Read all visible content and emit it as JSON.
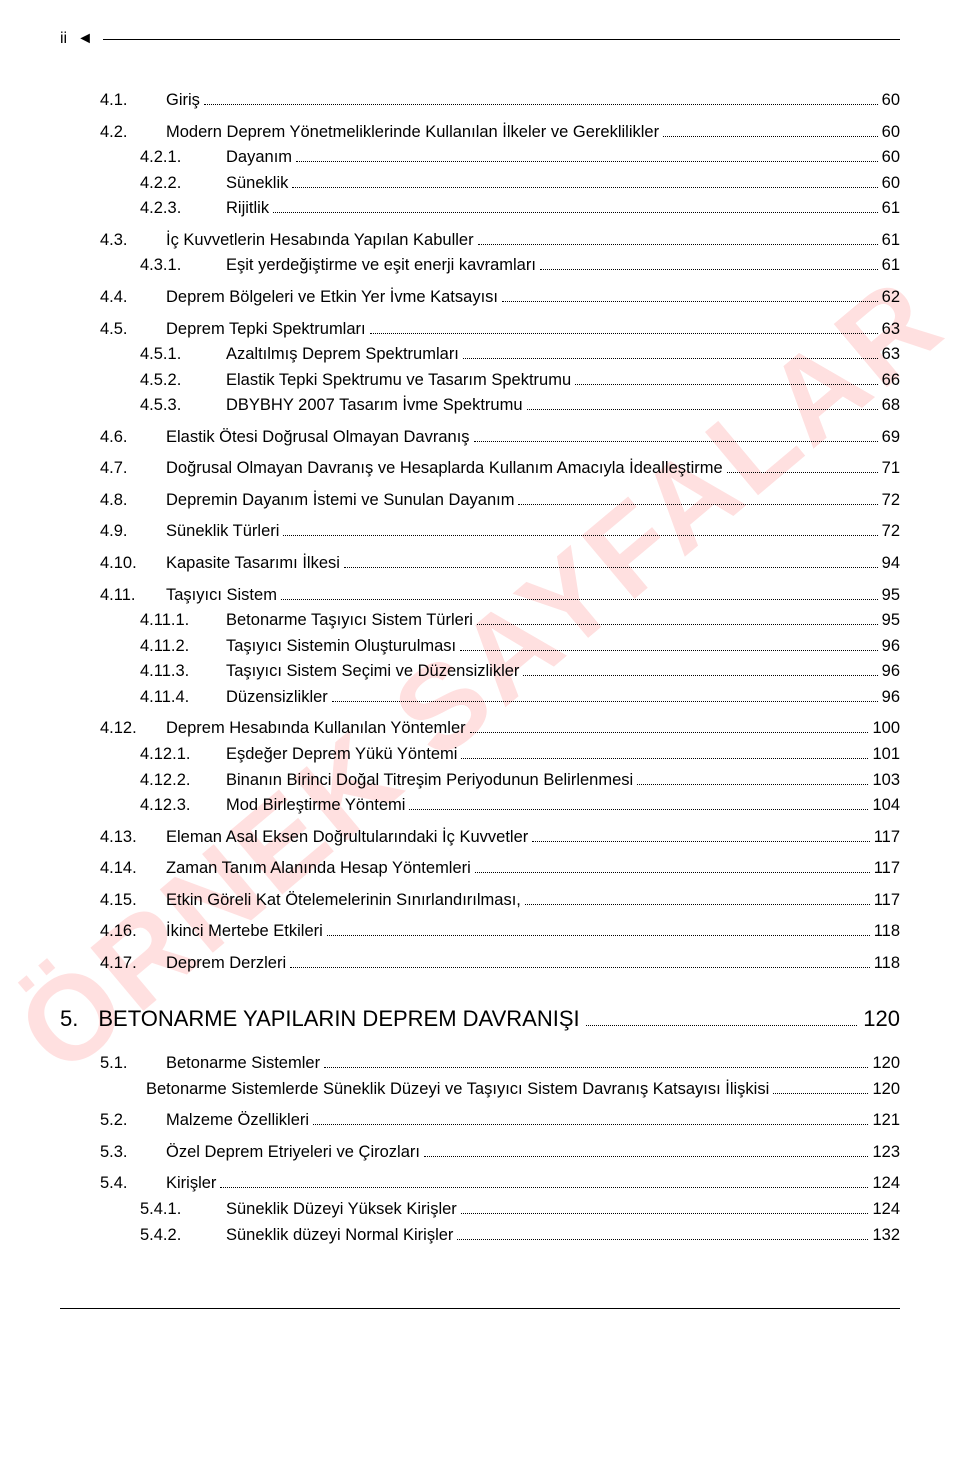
{
  "header": {
    "marker": "ii",
    "triangle": "◄"
  },
  "watermark": "ÖRNEK SAYFALAR",
  "toc": [
    {
      "num": "4.1.",
      "title": "Giriş",
      "page": "60",
      "indent": 1,
      "gap": true
    },
    {
      "num": "4.2.",
      "title": "Modern Deprem Yönetmeliklerinde Kullanılan İlkeler ve Gereklilikler",
      "page": "60",
      "indent": 1,
      "gap": true
    },
    {
      "num": "4.2.1.",
      "title": "Dayanım",
      "page": "60",
      "indent": 2
    },
    {
      "num": "4.2.2.",
      "title": "Süneklik",
      "page": "60",
      "indent": 2
    },
    {
      "num": "4.2.3.",
      "title": "Rijitlik",
      "page": "61",
      "indent": 2
    },
    {
      "num": "4.3.",
      "title": "İç Kuvvetlerin Hesabında Yapılan Kabuller",
      "page": "61",
      "indent": 1,
      "gap": true
    },
    {
      "num": "4.3.1.",
      "title": "Eşit yerdeğiştirme ve eşit enerji kavramları",
      "page": "61",
      "indent": 2
    },
    {
      "num": "4.4.",
      "title": "Deprem Bölgeleri ve Etkin Yer İvme Katsayısı",
      "page": "62",
      "indent": 1,
      "gap": true
    },
    {
      "num": "4.5.",
      "title": "Deprem Tepki Spektrumları",
      "page": "63",
      "indent": 1,
      "gap": true
    },
    {
      "num": "4.5.1.",
      "title": "Azaltılmış Deprem Spektrumları",
      "page": "63",
      "indent": 2
    },
    {
      "num": "4.5.2.",
      "title": "Elastik Tepki Spektrumu ve Tasarım Spektrumu",
      "page": "66",
      "indent": 2
    },
    {
      "num": "4.5.3.",
      "title": "DBYBHY 2007 Tasarım İvme Spektrumu",
      "page": "68",
      "indent": 2
    },
    {
      "num": "4.6.",
      "title": "Elastik Ötesi Doğrusal Olmayan Davranış",
      "page": "69",
      "indent": 1,
      "gap": true
    },
    {
      "num": "4.7.",
      "title": "Doğrusal Olmayan Davranış ve Hesaplarda Kullanım Amacıyla İdealleştirme",
      "page": "71",
      "indent": 1,
      "gap": true
    },
    {
      "num": "4.8.",
      "title": "Depremin Dayanım İstemi ve Sunulan Dayanım",
      "page": "72",
      "indent": 1,
      "gap": true
    },
    {
      "num": "4.9.",
      "title": "Süneklik Türleri",
      "page": "72",
      "indent": 1,
      "gap": true
    },
    {
      "num": "4.10.",
      "title": "Kapasite Tasarımı İlkesi",
      "page": "94",
      "indent": 1,
      "gap": true
    },
    {
      "num": "4.11.",
      "title": "Taşıyıcı Sistem",
      "page": "95",
      "indent": 1,
      "gap": true
    },
    {
      "num": "4.11.1.",
      "title": "Betonarme Taşıyıcı Sistem Türleri",
      "page": "95",
      "indent": 2
    },
    {
      "num": "4.11.2.",
      "title": "Taşıyıcı Sistemin Oluşturulması",
      "page": "96",
      "indent": 2
    },
    {
      "num": "4.11.3.",
      "title": "Taşıyıcı Sistem Seçimi ve Düzensizlikler",
      "page": "96",
      "indent": 2
    },
    {
      "num": "4.11.4.",
      "title": "Düzensizlikler",
      "page": "96",
      "indent": 2
    },
    {
      "num": "4.12.",
      "title": "Deprem Hesabında Kullanılan Yöntemler",
      "page": "100",
      "indent": 1,
      "gap": true
    },
    {
      "num": "4.12.1.",
      "title": "Eşdeğer Deprem Yükü Yöntemi",
      "page": "101",
      "indent": 2
    },
    {
      "num": "4.12.2.",
      "title": "Binanın Birinci Doğal Titreşim Periyodunun Belirlenmesi",
      "page": "103",
      "indent": 2
    },
    {
      "num": "4.12.3.",
      "title": "Mod Birleştirme Yöntemi",
      "page": "104",
      "indent": 2
    },
    {
      "num": "4.13.",
      "title": "Eleman Asal Eksen Doğrultularındaki İç Kuvvetler",
      "page": "117",
      "indent": 1,
      "gap": true
    },
    {
      "num": "4.14.",
      "title": "Zaman Tanım Alanında Hesap Yöntemleri",
      "page": "117",
      "indent": 1,
      "gap": true
    },
    {
      "num": "4.15.",
      "title": "Etkin Göreli Kat Ötelemelerinin Sınırlandırılması,",
      "page": "117",
      "indent": 1,
      "gap": true
    },
    {
      "num": "4.16.",
      "title": "İkinci Mertebe Etkileri",
      "page": "118",
      "indent": 1,
      "gap": true
    },
    {
      "num": "4.17.",
      "title": "Deprem Derzleri",
      "page": "118",
      "indent": 1,
      "gap": true
    }
  ],
  "chapter": {
    "num": "5.",
    "title": "BETONARME YAPILARIN DEPREM DAVRANIŞI",
    "page": "120"
  },
  "toc2": [
    {
      "num": "5.1.",
      "title": "Betonarme Sistemler",
      "page": "120",
      "indent": 1,
      "gap": true
    },
    {
      "num": "",
      "title": "Betonarme Sistemlerde Süneklik Düzeyi ve Taşıyıcı Sistem Davranış Katsayısı İlişkisi",
      "page": "120",
      "indent": 2
    },
    {
      "num": "5.2.",
      "title": "Malzeme Özellikleri",
      "page": "121",
      "indent": 1,
      "gap": true
    },
    {
      "num": "5.3.",
      "title": "Özel Deprem Etriyeleri ve Çirozları",
      "page": "123",
      "indent": 1,
      "gap": true
    },
    {
      "num": "5.4.",
      "title": "Kirişler",
      "page": "124",
      "indent": 1,
      "gap": true
    },
    {
      "num": "5.4.1.",
      "title": "Süneklik Düzeyi Yüksek Kirişler",
      "page": "124",
      "indent": 2
    },
    {
      "num": "5.4.2.",
      "title": "Süneklik düzeyi Normal Kirişler",
      "page": "132",
      "indent": 2
    }
  ]
}
